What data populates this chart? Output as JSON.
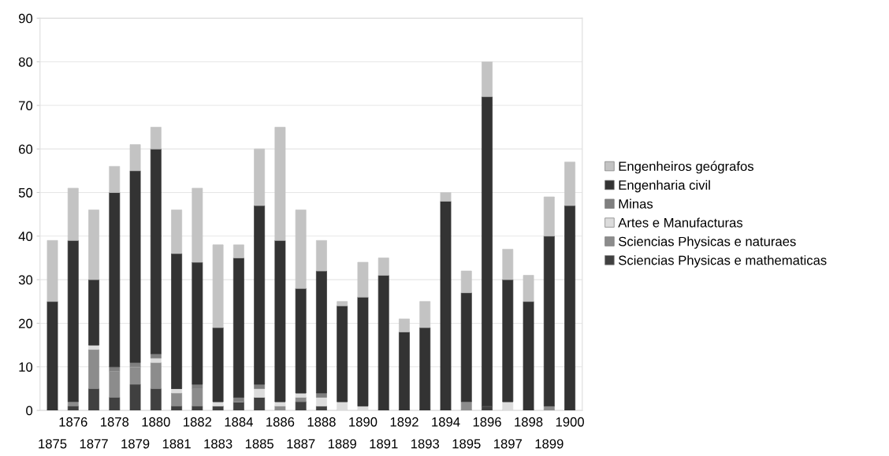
{
  "chart_data": {
    "type": "bar",
    "stacked": true,
    "categories": [
      "1875",
      "1876",
      "1877",
      "1878",
      "1879",
      "1880",
      "1881",
      "1882",
      "1883",
      "1884",
      "1885",
      "1886",
      "1887",
      "1888",
      "1889",
      "1890",
      "1891",
      "1892",
      "1893",
      "1894",
      "1895",
      "1896",
      "1897",
      "1898",
      "1899",
      "1900"
    ],
    "series": [
      {
        "name": "Sciencias Physicas e mathematicas",
        "color": "#404040",
        "values": [
          0,
          1,
          5,
          3,
          6,
          5,
          1,
          1,
          1,
          2,
          3,
          0,
          2,
          1,
          0,
          0,
          0,
          0,
          0,
          0,
          0,
          1,
          0,
          0,
          0,
          0
        ]
      },
      {
        "name": "Sciencias Physicas e naturaes",
        "color": "#8c8c8c",
        "values": [
          0,
          1,
          9,
          6,
          4,
          6,
          3,
          4,
          0,
          0,
          0,
          1,
          1,
          0,
          0,
          0,
          0,
          0,
          0,
          0,
          2,
          0,
          0,
          0,
          1,
          0
        ]
      },
      {
        "name": "Artes e Manufacturas",
        "color": "#dcdcdc",
        "values": [
          0,
          0,
          1,
          0,
          0,
          1,
          1,
          0,
          1,
          0,
          2,
          1,
          1,
          2,
          2,
          1,
          0,
          0,
          0,
          0,
          0,
          0,
          2,
          0,
          0,
          0
        ]
      },
      {
        "name": "Minas",
        "color": "#7f7f7f",
        "values": [
          0,
          0,
          0,
          1,
          1,
          1,
          0,
          1,
          0,
          1,
          1,
          0,
          0,
          1,
          0,
          0,
          0,
          0,
          0,
          0,
          0,
          0,
          0,
          0,
          0,
          0
        ]
      },
      {
        "name": "Engenharia civil",
        "color": "#333333",
        "values": [
          25,
          37,
          15,
          40,
          44,
          47,
          31,
          28,
          17,
          32,
          41,
          37,
          24,
          28,
          22,
          25,
          31,
          18,
          19,
          48,
          25,
          71,
          28,
          25,
          39,
          47
        ]
      },
      {
        "name": "Engenheiros geógrafos",
        "color": "#c3c3c3",
        "values": [
          14,
          12,
          16,
          6,
          6,
          5,
          10,
          17,
          19,
          3,
          13,
          26,
          18,
          7,
          1,
          8,
          4,
          3,
          6,
          2,
          5,
          8,
          7,
          6,
          9,
          10
        ]
      }
    ],
    "ylim": [
      0,
      90
    ],
    "yticks": [
      0,
      10,
      20,
      30,
      40,
      50,
      60,
      70,
      80,
      90
    ],
    "grid": "y",
    "legend": "right"
  }
}
